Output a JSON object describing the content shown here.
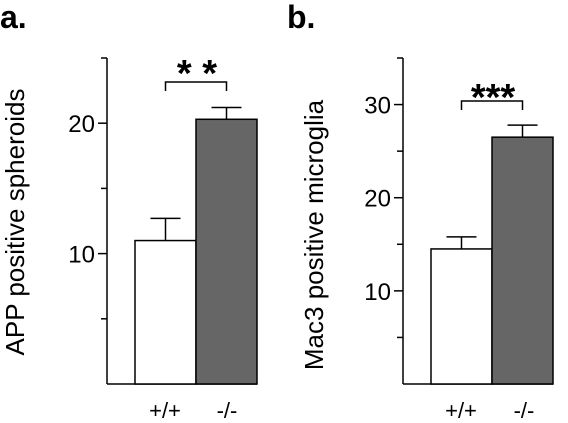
{
  "chart_data": [
    {
      "panel": "a.",
      "type": "bar",
      "categories": [
        "+/+",
        "-/-"
      ],
      "values": [
        11.0,
        20.3
      ],
      "errors": [
        1.7,
        0.9
      ],
      "ylabel": "APP positive spheroids",
      "ylim": [
        0,
        25
      ],
      "yticks": [
        10,
        20
      ],
      "minor_yticks": [
        5,
        15,
        25
      ],
      "bar_colors": [
        "#ffffff",
        "#666666"
      ],
      "significance": "* *"
    },
    {
      "panel": "b.",
      "type": "bar",
      "categories": [
        "+/+",
        "-/-"
      ],
      "values": [
        14.5,
        26.5
      ],
      "errors": [
        1.3,
        1.3
      ],
      "ylabel": "Mac3 positive microglia",
      "ylim": [
        0,
        35
      ],
      "yticks": [
        10,
        20,
        30
      ],
      "minor_yticks": [
        5,
        15,
        25,
        35
      ],
      "bar_colors": [
        "#ffffff",
        "#666666"
      ],
      "significance": "***"
    }
  ]
}
